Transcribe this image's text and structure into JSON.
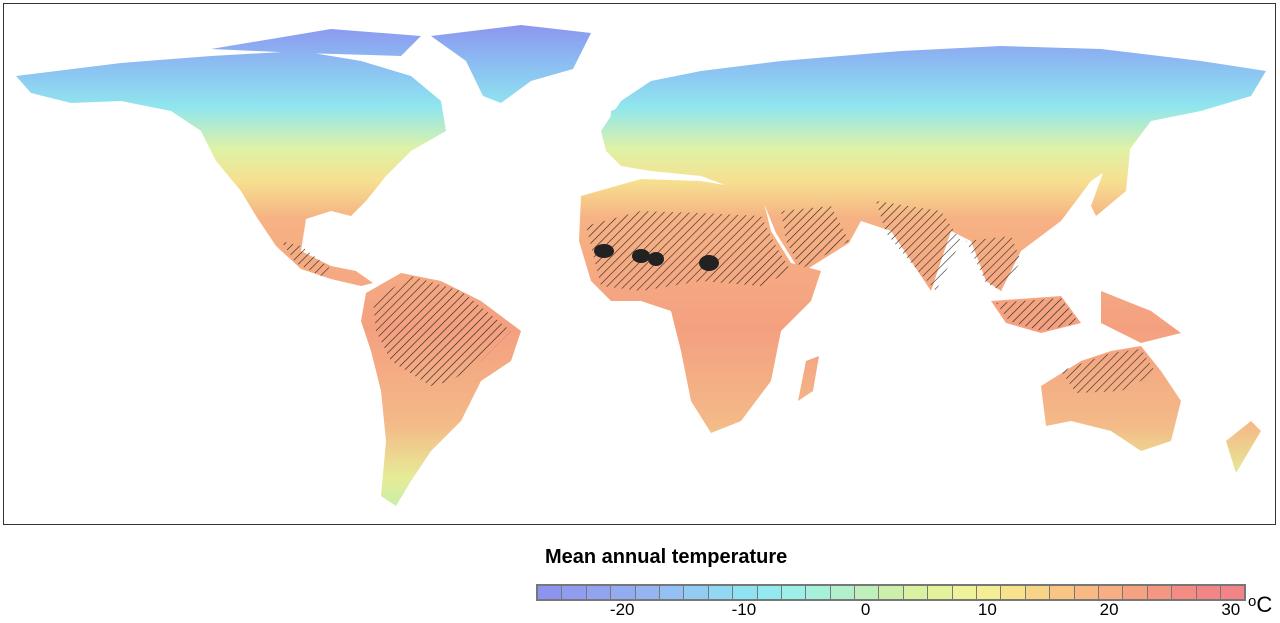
{
  "map": {
    "projection": "equirectangular",
    "hatched_regions": [
      "Sahel",
      "Amazon",
      "India",
      "Southeast Asia",
      "Northern Australia",
      "Arabian Peninsula",
      "Central America"
    ],
    "solid_black_regions": [
      "Sahara"
    ],
    "colors": {
      "cold": "#8c94f0",
      "cool": "#8ae8f0",
      "mild": "#f2f29a",
      "hot": "#f4a080",
      "hatch": "#222222",
      "border": "#333333"
    }
  },
  "legend": {
    "title": "Mean annual temperature",
    "unit": "C",
    "unit_symbol": "o",
    "ticks": [
      {
        "value": -20,
        "label": "-20"
      },
      {
        "value": -10,
        "label": "-10"
      },
      {
        "value": 0,
        "label": "0"
      },
      {
        "value": 10,
        "label": "10"
      },
      {
        "value": 20,
        "label": "20"
      },
      {
        "value": 30,
        "label": "30"
      }
    ],
    "range": [
      -27,
      31
    ],
    "bin_step": 2,
    "bin_colors": [
      "#8d94ef",
      "#8f9cef",
      "#91a4f0",
      "#93acf1",
      "#94b4f2",
      "#94c0f3",
      "#93ccf3",
      "#90d8f3",
      "#8ee2f2",
      "#92eaef",
      "#9cf0e8",
      "#a6f0dc",
      "#b2f0cc",
      "#bff0bc",
      "#ccf0ac",
      "#d9f2a2",
      "#e4f29c",
      "#eef298",
      "#f6ee94",
      "#f8e28c",
      "#f8d486",
      "#f8c682",
      "#f8ba82",
      "#f6ae82",
      "#f6a282",
      "#f49682",
      "#f48c84",
      "#f28686",
      "#f28488"
    ]
  }
}
